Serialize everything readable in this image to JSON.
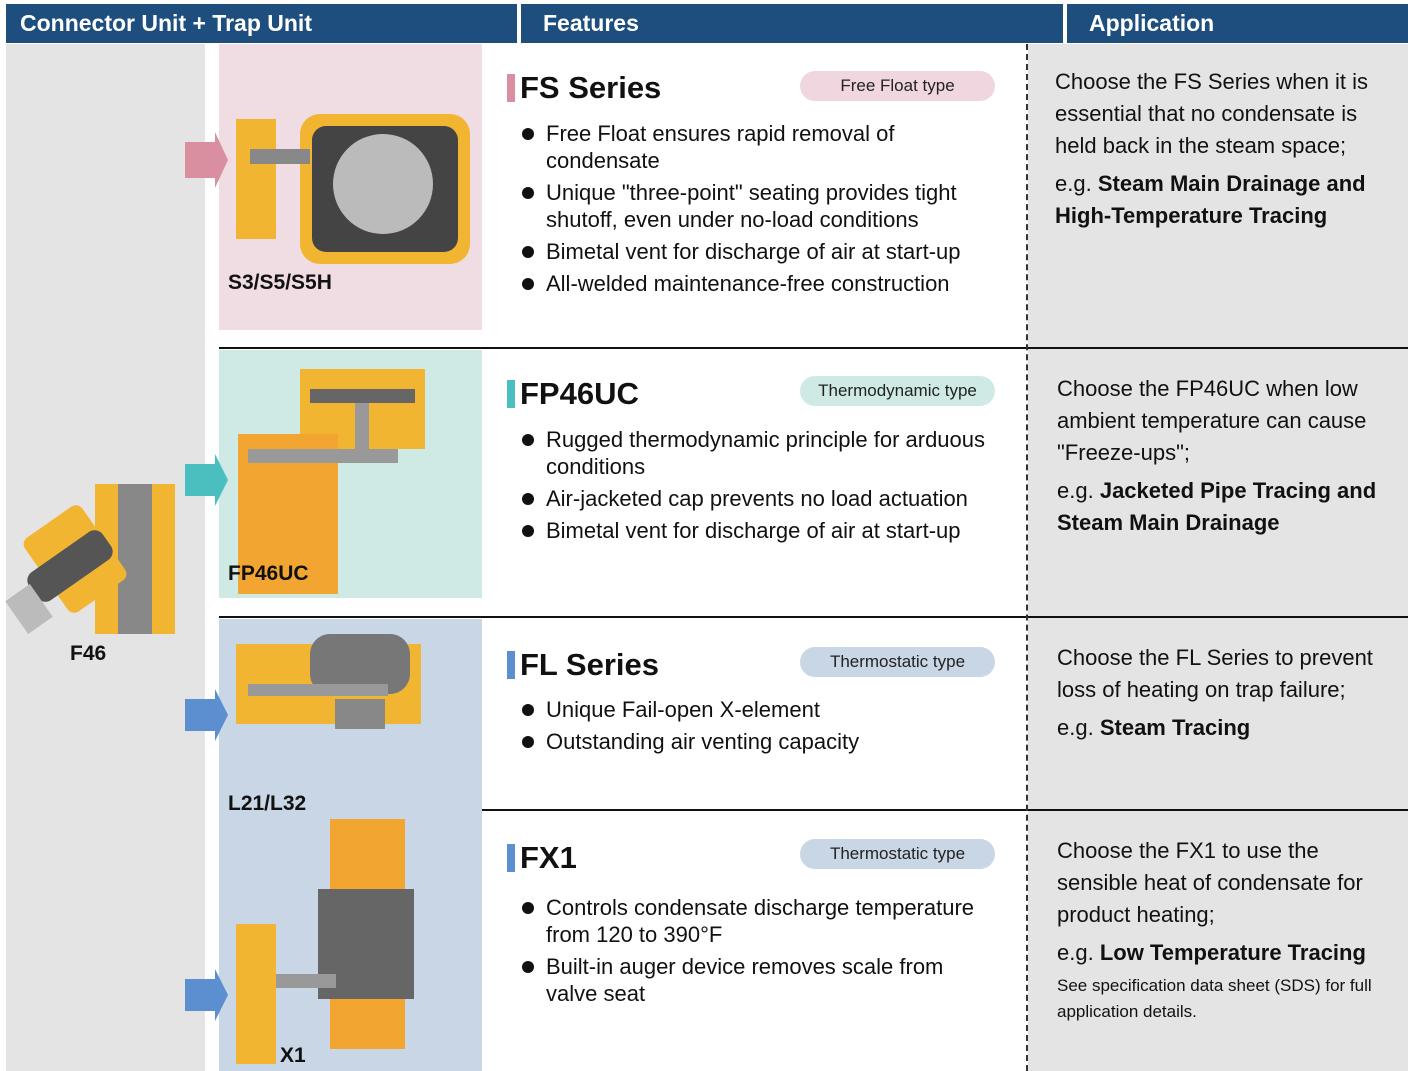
{
  "header": {
    "columns": [
      "Connector Unit + Trap Unit",
      "Features",
      "Application"
    ]
  },
  "connector": {
    "label": "F46"
  },
  "rows": [
    {
      "image_label": "S3/S5/S5H",
      "series": "FS Series",
      "type": "Free Float type",
      "bullets": [
        "Free Float ensures rapid removal of condensate",
        "Unique \"three-point\" seating provides tight shutoff, even under no-load conditions",
        "Bimetal vent for discharge of air at start-up",
        "All-welded maintenance-free construction"
      ],
      "application": "Choose the FS Series when it is essential that no condensate is held back in the steam space;",
      "eg_label": "e.g.",
      "eg": "Steam Main Drainage and High-Temperature Tracing"
    },
    {
      "image_label": "FP46UC",
      "series": "FP46UC",
      "type": "Thermodynamic type",
      "bullets": [
        "Rugged thermodynamic principle for arduous conditions",
        "Air-jacketed cap prevents no load actuation",
        "Bimetal vent for discharge of air at start-up"
      ],
      "application": "Choose the FP46UC when low ambient temperature can cause \"Freeze-ups\";",
      "eg_label": "e.g.",
      "eg": "Jacketed Pipe Tracing and Steam Main Drainage"
    },
    {
      "image_label": "L21/L32",
      "series": "FL Series",
      "type": "Thermostatic type",
      "bullets": [
        "Unique Fail-open X-element",
        "Outstanding air venting capacity"
      ],
      "application": "Choose the FL Series to prevent loss of heating on trap failure;",
      "eg_label": "e.g.",
      "eg": "Steam Tracing"
    },
    {
      "image_label": "X1",
      "series": "FX1",
      "type": "Thermostatic type",
      "bullets": [
        "Controls condensate discharge temperature from 120 to 390°F",
        "Built-in auger device removes scale from valve seat"
      ],
      "application": "Choose the FX1 to use the sensible heat of condensate for product heating;",
      "eg_label": "e.g.",
      "eg": "Low Temperature Tracing",
      "note": "See specification data sheet (SDS) for full application details."
    }
  ]
}
